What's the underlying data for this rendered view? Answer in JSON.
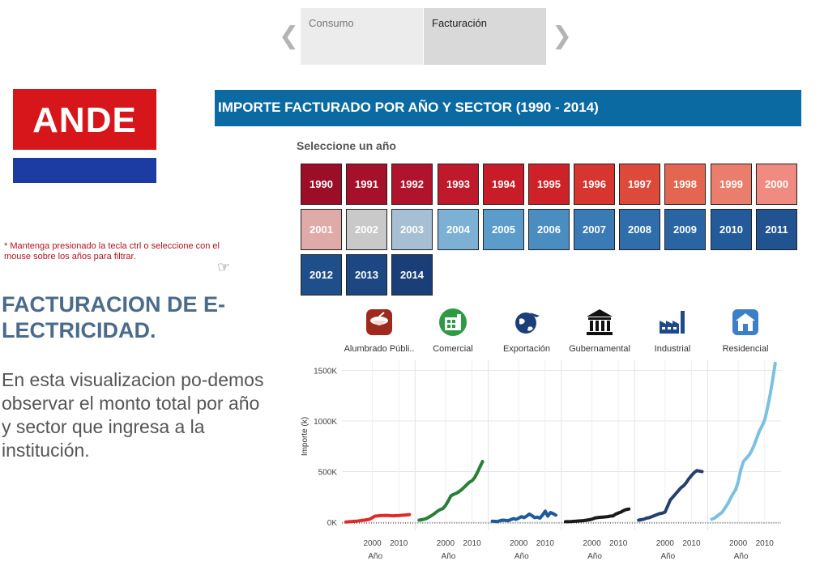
{
  "story_nav": {
    "tabs": [
      {
        "label": "Consumo"
      },
      {
        "label": "Facturación"
      }
    ]
  },
  "logo": {
    "text": "ANDE"
  },
  "header": {
    "title": "IMPORTE FACTURADO POR AÑO Y SECTOR (1990 - 2014)"
  },
  "year_filter": {
    "label": "Seleccione un año",
    "years": [
      {
        "label": "1990",
        "color": "#9c0d27"
      },
      {
        "label": "1991",
        "color": "#a5102a"
      },
      {
        "label": "1992",
        "color": "#b0132c"
      },
      {
        "label": "1993",
        "color": "#be1a2b"
      },
      {
        "label": "1994",
        "color": "#c81d29"
      },
      {
        "label": "1995",
        "color": "#cf2128"
      },
      {
        "label": "1996",
        "color": "#d6362f"
      },
      {
        "label": "1997",
        "color": "#dd4a3a"
      },
      {
        "label": "1998",
        "color": "#e46550"
      },
      {
        "label": "1999",
        "color": "#ea7d6b"
      },
      {
        "label": "2000",
        "color": "#ef8b80"
      },
      {
        "label": "2001",
        "color": "#dfaaa7"
      },
      {
        "label": "2002",
        "color": "#c9c9c9"
      },
      {
        "label": "2003",
        "color": "#a6bfd2"
      },
      {
        "label": "2004",
        "color": "#7cb0d5"
      },
      {
        "label": "2005",
        "color": "#5b9ccb"
      },
      {
        "label": "2006",
        "color": "#4a8dc1"
      },
      {
        "label": "2007",
        "color": "#3a7ab5"
      },
      {
        "label": "2008",
        "color": "#2f6eab"
      },
      {
        "label": "2009",
        "color": "#2964a3"
      },
      {
        "label": "2010",
        "color": "#235b9a"
      },
      {
        "label": "2011",
        "color": "#215391"
      },
      {
        "label": "2012",
        "color": "#1f4f8b"
      },
      {
        "label": "2013",
        "color": "#1c4783"
      },
      {
        "label": "2014",
        "color": "#1a3f78"
      }
    ]
  },
  "note": {
    "text": "* Mantenga presionado la tecla ctrl o seleccione con el mouse sobre los años para filtrar."
  },
  "story": {
    "title": "FACTURACION DE E-LECTRICIDAD.",
    "body": "En esta visualizacion po-demos observar el monto total por año y sector que ingresa a la institución."
  },
  "sectors": [
    {
      "label": "Alumbrado Públi..",
      "icon": "street-light-icon",
      "color": "#9e2a1f"
    },
    {
      "label": "Comercial",
      "icon": "commercial-building-icon",
      "color": "#2e9a45"
    },
    {
      "label": "Exportación",
      "icon": "globe-plane-icon",
      "color": "#1c3f7a"
    },
    {
      "label": "Gubernamental",
      "icon": "government-building-icon",
      "color": "#111111"
    },
    {
      "label": "Industrial",
      "icon": "factory-icon",
      "color": "#1f4a8a"
    },
    {
      "label": "Residencial",
      "icon": "house-icon",
      "color": "#3a7fc8"
    }
  ],
  "chart_data": {
    "type": "line",
    "ylabel": "Importe (k)",
    "xlabel": "Año",
    "yticks": [
      "0K",
      "500K",
      "1000K",
      "1500K"
    ],
    "ylim": [
      0,
      1600
    ],
    "xlim": [
      1990,
      2014
    ],
    "xticks": [
      "2000",
      "2010"
    ],
    "x": [
      1990,
      1991,
      1992,
      1993,
      1994,
      1995,
      1996,
      1997,
      1998,
      1999,
      2000,
      2001,
      2002,
      2003,
      2004,
      2005,
      2006,
      2007,
      2008,
      2009,
      2010,
      2011,
      2012,
      2013,
      2014
    ],
    "series": [
      {
        "name": "Alumbrado Públi..",
        "color": "#e02a2a",
        "values": [
          2,
          4,
          6,
          8,
          10,
          14,
          18,
          20,
          25,
          30,
          45,
          60,
          62,
          65,
          66,
          67,
          66,
          64,
          63,
          65,
          66,
          68,
          70,
          72,
          75
        ]
      },
      {
        "name": "Comercial",
        "color": "#2a7f38",
        "values": [
          20,
          25,
          30,
          40,
          55,
          70,
          90,
          110,
          125,
          135,
          165,
          210,
          260,
          275,
          285,
          300,
          320,
          345,
          370,
          395,
          410,
          440,
          490,
          545,
          600
        ]
      },
      {
        "name": "Exportación",
        "color": "#1e5a99",
        "values": [
          10,
          8,
          6,
          15,
          20,
          18,
          15,
          25,
          35,
          28,
          40,
          55,
          45,
          60,
          80,
          65,
          45,
          50,
          40,
          70,
          110,
          60,
          95,
          85,
          70
        ]
      },
      {
        "name": "Gubernamental",
        "color": "#1a1a1a",
        "values": [
          5,
          5,
          6,
          8,
          10,
          12,
          14,
          16,
          20,
          24,
          30,
          40,
          45,
          48,
          50,
          52,
          55,
          60,
          62,
          80,
          90,
          100,
          115,
          125,
          130
        ]
      },
      {
        "name": "Industrial",
        "color": "#25406e",
        "values": [
          20,
          25,
          30,
          40,
          45,
          55,
          65,
          75,
          85,
          90,
          100,
          160,
          220,
          250,
          280,
          310,
          340,
          360,
          390,
          430,
          460,
          490,
          510,
          505,
          500
        ]
      },
      {
        "name": "Residencial",
        "color": "#7cc1e0",
        "values": [
          30,
          40,
          60,
          80,
          100,
          140,
          180,
          230,
          280,
          320,
          400,
          520,
          600,
          630,
          660,
          700,
          760,
          830,
          900,
          950,
          1010,
          1120,
          1250,
          1400,
          1570
        ]
      }
    ]
  }
}
